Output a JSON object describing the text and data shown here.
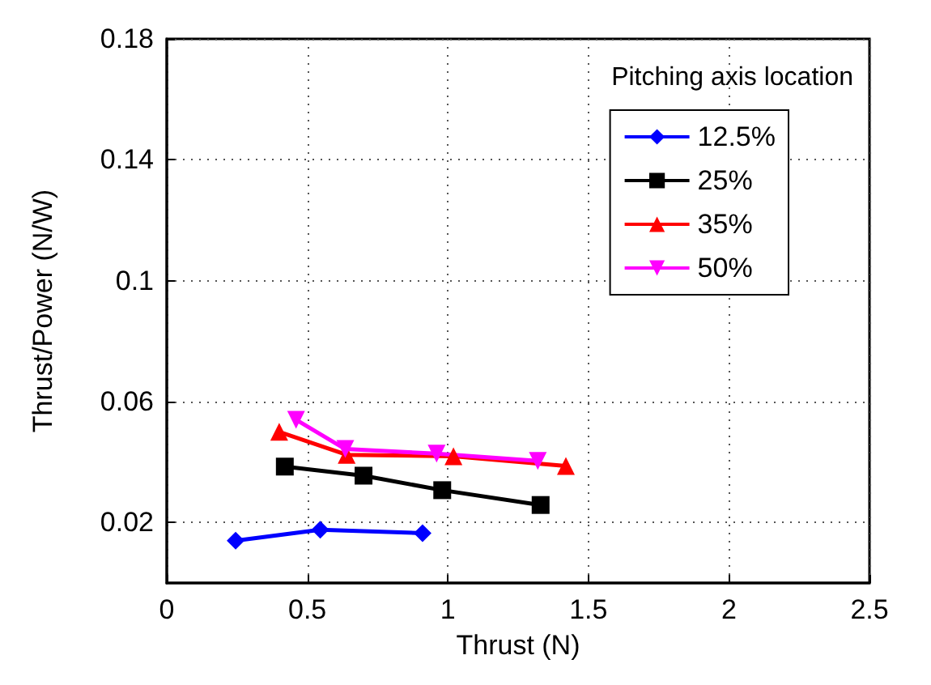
{
  "chart_data": {
    "type": "line",
    "xlabel": "Thrust (N)",
    "ylabel": "Thrust/Power (N/W)",
    "legend_title": "Pitching axis location",
    "legend": "top right",
    "grid": true,
    "xlim": [
      0,
      2.5
    ],
    "xticks": [
      0,
      0.5,
      1,
      1.5,
      2,
      2.5
    ],
    "ylim": [
      0,
      0.18
    ],
    "yticks": [
      0.02,
      0.06,
      0.1,
      0.14,
      0.18
    ],
    "series": [
      {
        "name": "12.5%",
        "color": "#0000ff",
        "marker": "diamond",
        "x": [
          0.245,
          0.546,
          0.91
        ],
        "values": [
          0.014,
          0.0176,
          0.0165
        ]
      },
      {
        "name": "25%",
        "color": "#000000",
        "marker": "square",
        "x": [
          0.42,
          0.7,
          0.98,
          1.33
        ],
        "values": [
          0.0385,
          0.0355,
          0.0307,
          0.0258
        ]
      },
      {
        "name": "35%",
        "color": "#ff0000",
        "marker": "triangle",
        "x": [
          0.4,
          0.64,
          1.02,
          1.42
        ],
        "values": [
          0.05,
          0.0424,
          0.0419,
          0.0387
        ]
      },
      {
        "name": "50%",
        "color": "#ff00ff",
        "marker": "triangle-down",
        "x": [
          0.46,
          0.635,
          0.96,
          1.32
        ],
        "values": [
          0.054,
          0.0443,
          0.0428,
          0.0404
        ]
      }
    ]
  }
}
